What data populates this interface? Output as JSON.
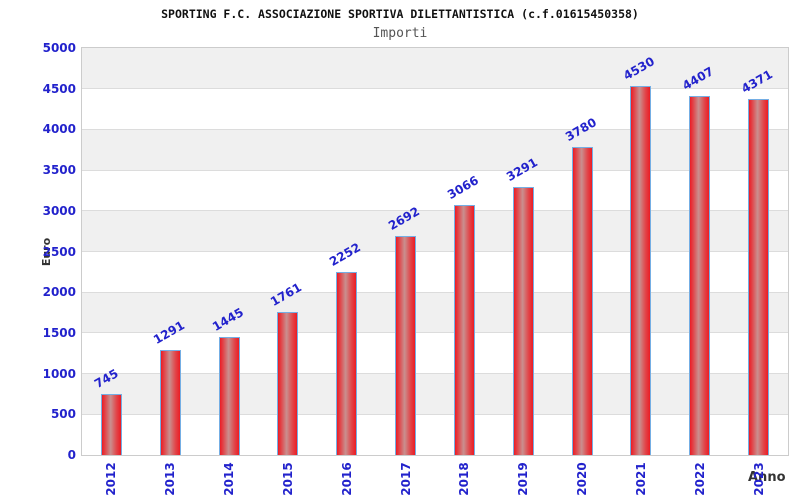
{
  "chart_data": {
    "type": "bar",
    "title": "SPORTING F.C. ASSOCIAZIONE SPORTIVA DILETTANTISTICA (c.f.01615450358)",
    "subtitle": "Importi",
    "xlabel": "Anno",
    "ylabel": "Euro",
    "categories": [
      "2012",
      "2013",
      "2014",
      "2015",
      "2016",
      "2017",
      "2018",
      "2019",
      "2020",
      "2021",
      "2022",
      "2023"
    ],
    "values": [
      745,
      1291,
      1445,
      1761,
      2252,
      2692,
      3066,
      3291,
      3780,
      4530,
      4407,
      4371
    ],
    "ylim": [
      0,
      5000
    ],
    "ytick_step": 500,
    "yticks": [
      0,
      500,
      1000,
      1500,
      2000,
      2500,
      3000,
      3500,
      4000,
      4500,
      5000
    ],
    "legend": "none",
    "grid": "alternating-horizontal-bands",
    "colors": {
      "bar_edge_red": "#ec1c24",
      "bar_mid_red": "#e0484c",
      "bar_center_light": "#c9908f",
      "bar_border": "#74aee4",
      "axis_text_blue": "#2222cc",
      "band_gray": "#f0f0f0",
      "gridline": "#dcdcdc",
      "plot_border": "#cccccc",
      "title_color": "#111111",
      "subtitle_color": "#555555",
      "axis_title_color": "#333333"
    }
  }
}
